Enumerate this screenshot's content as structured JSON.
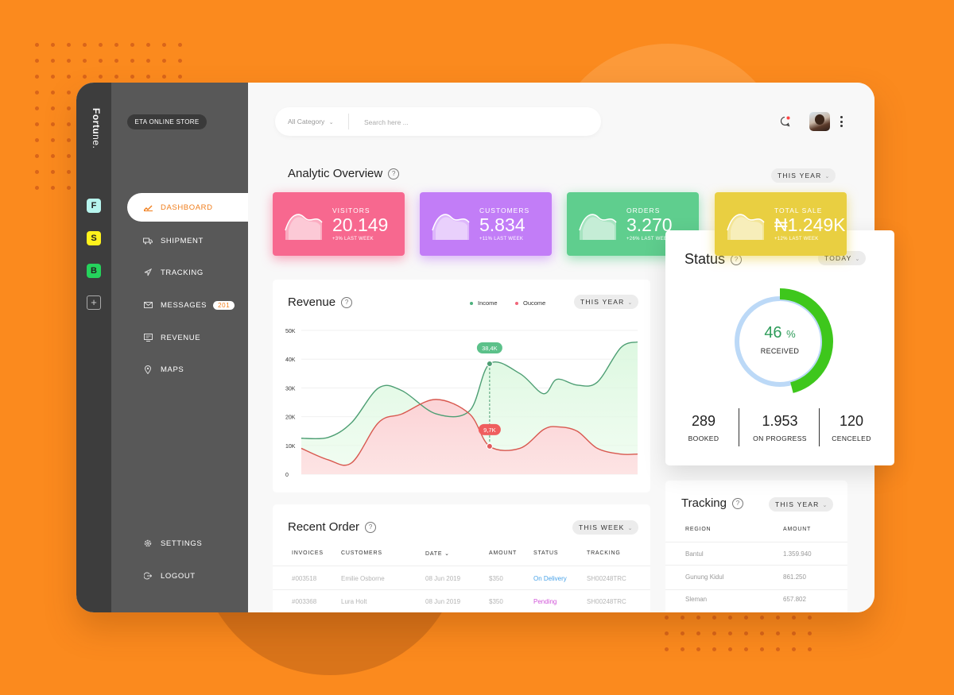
{
  "brand": {
    "name_bold": "Fortu",
    "name_light": "ne."
  },
  "workspaces": [
    {
      "letter": "F",
      "color": "#b7f5ee"
    },
    {
      "letter": "S",
      "color": "#fff21c"
    },
    {
      "letter": "B",
      "color": "#25d35c"
    }
  ],
  "store": {
    "name": "ETA ONLINE STORE"
  },
  "nav": {
    "items": [
      {
        "label": "DASHBOARD",
        "icon": "chart-icon"
      },
      {
        "label": "SHIPMENT",
        "icon": "truck-icon"
      },
      {
        "label": "TRACKING",
        "icon": "navigation-icon"
      },
      {
        "label": "MESSAGES",
        "icon": "mail-icon",
        "badge": "201"
      },
      {
        "label": "REVENUE",
        "icon": "monitor-icon"
      },
      {
        "label": "MAPS",
        "icon": "map-pin-icon"
      }
    ],
    "bottom": [
      {
        "label": "SETTINGS",
        "icon": "gear-icon"
      },
      {
        "label": "LOGOUT",
        "icon": "logout-icon"
      }
    ]
  },
  "search": {
    "category": "All Category",
    "placeholder": "Search here ..."
  },
  "analytic": {
    "title": "Analytic Overview",
    "period": "THIS YEAR",
    "cards": [
      {
        "label": "VISITORS",
        "value": "20.149",
        "sub": "+3% LAST WEEK",
        "color": "#f7688f"
      },
      {
        "label": "CUSTOMERS",
        "value": "5.834",
        "sub": "+11% LAST WEEK",
        "color": "#c27df7"
      },
      {
        "label": "ORDERS",
        "value": "3.270",
        "sub": "+26% LAST WEEK",
        "color": "#5fce8e"
      },
      {
        "label": "TOTAL SALE",
        "value": "₦1.249K",
        "sub": "+12% LAST WEEK",
        "color": "#e9cf41"
      }
    ]
  },
  "revenue": {
    "title": "Revenue",
    "period": "THIS YEAR",
    "legend": {
      "income": "Income",
      "outcome": "Oucome"
    },
    "tooltips": {
      "income": "38,4K",
      "outcome": "9,7K"
    }
  },
  "chart_data": {
    "type": "area",
    "ylim": [
      0,
      50000
    ],
    "yticks": [
      "50K",
      "40K",
      "30K",
      "20K",
      "10K",
      "0"
    ],
    "x": [
      0,
      0.08,
      0.15,
      0.23,
      0.3,
      0.4,
      0.5,
      0.56,
      0.65,
      0.72,
      0.76,
      0.82,
      0.88,
      0.95,
      1.0
    ],
    "series": [
      {
        "name": "Income",
        "values": [
          12500,
          12800,
          18000,
          30000,
          29000,
          21000,
          22000,
          38400,
          35000,
          28000,
          33000,
          31000,
          32000,
          44000,
          46000
        ]
      },
      {
        "name": "Oucome",
        "values": [
          9000,
          5000,
          4000,
          18000,
          21000,
          26000,
          21000,
          9700,
          9000,
          15500,
          16500,
          15000,
          9000,
          7000,
          7000
        ]
      }
    ],
    "highlight_x": 0.56
  },
  "status": {
    "title": "Status",
    "period": "TODAY",
    "percent": "46",
    "percent_sign": "%",
    "percent_value": 0.46,
    "label": "RECEIVED",
    "stats": [
      {
        "value": "289",
        "label": "BOOKED"
      },
      {
        "value": "1.953",
        "label": "ON  PROGRESS"
      },
      {
        "value": "120",
        "label": "CENCELED"
      }
    ]
  },
  "recent_order": {
    "title": "Recent Order",
    "period": "THIS WEEK",
    "columns": [
      "INVOICES",
      "CUSTOMERS",
      "DATE",
      "AMOUNT",
      "STATUS",
      "TRACKING"
    ],
    "rows": [
      {
        "invoice": "#003518",
        "customer": "Emilie Osborne",
        "date": "08 Jun 2019",
        "amount": "$350",
        "status": "On Delivery",
        "status_color": "#4aa3e8",
        "tracking": "SH00248TRC"
      },
      {
        "invoice": "#003368",
        "customer": "Lura Holt",
        "date": "08 Jun 2019",
        "amount": "$350",
        "status": "Pending",
        "status_color": "#d155d9",
        "tracking": "SH00248TRC"
      }
    ]
  },
  "tracking": {
    "title": "Tracking",
    "period": "THIS YEAR",
    "columns": [
      "REGION",
      "AMOUNT"
    ],
    "rows": [
      {
        "region": "Bantul",
        "amount": "1.359.940"
      },
      {
        "region": "Gunung Kidul",
        "amount": "861.250"
      },
      {
        "region": "Sleman",
        "amount": "657.802"
      }
    ]
  }
}
